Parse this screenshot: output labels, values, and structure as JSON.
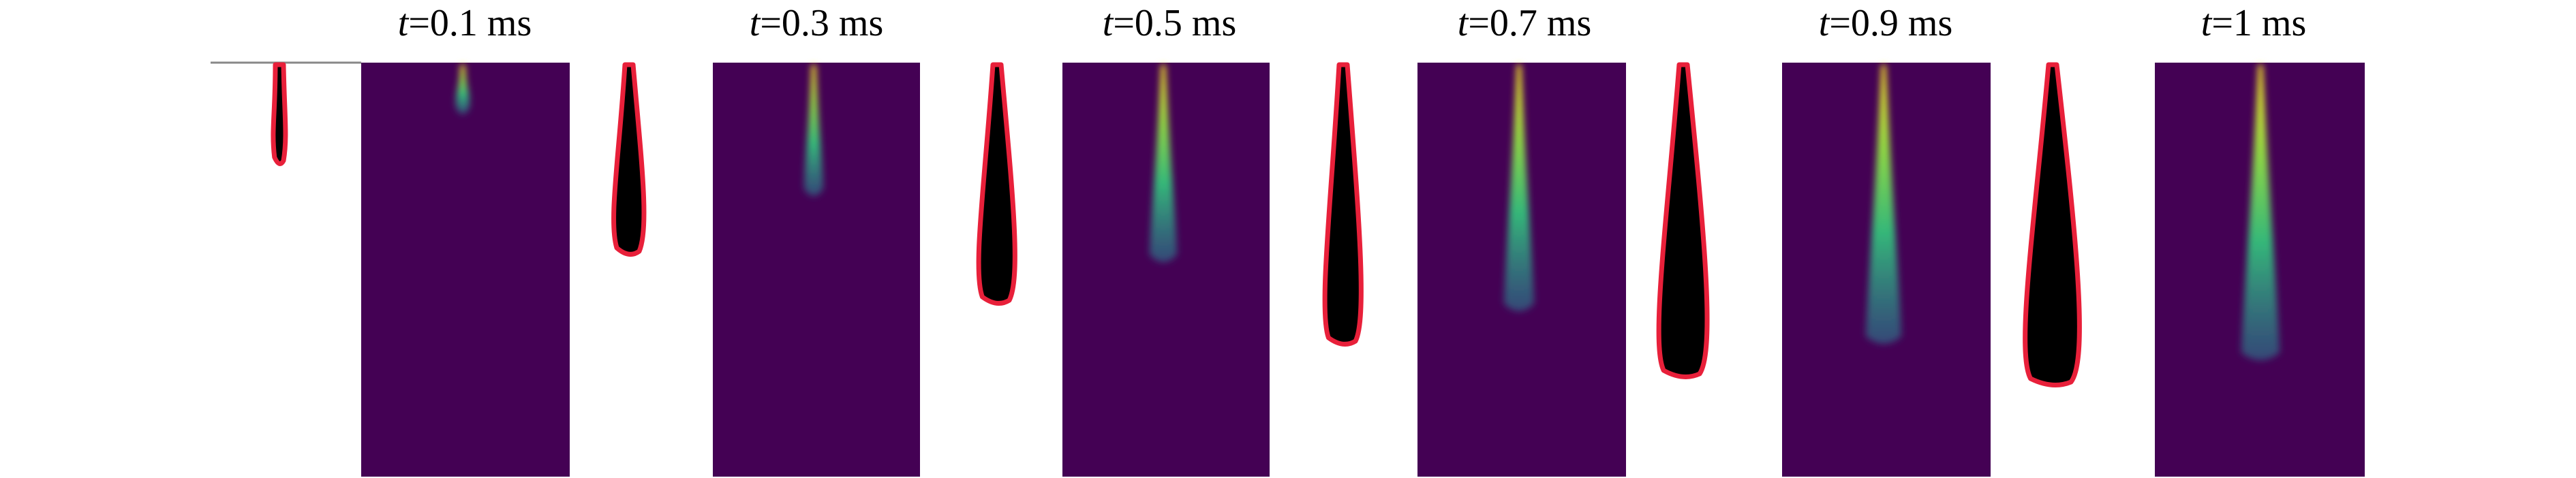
{
  "panels": [
    {
      "symbol": "t",
      "label": "=0.1 ms"
    },
    {
      "symbol": "t",
      "label": "=0.3 ms"
    },
    {
      "symbol": "t",
      "label": "=0.5 ms"
    },
    {
      "symbol": "t",
      "label": "=0.7 ms"
    },
    {
      "symbol": "t",
      "label": "=0.9 ms"
    },
    {
      "symbol": "t",
      "label": "=1 ms"
    }
  ]
}
